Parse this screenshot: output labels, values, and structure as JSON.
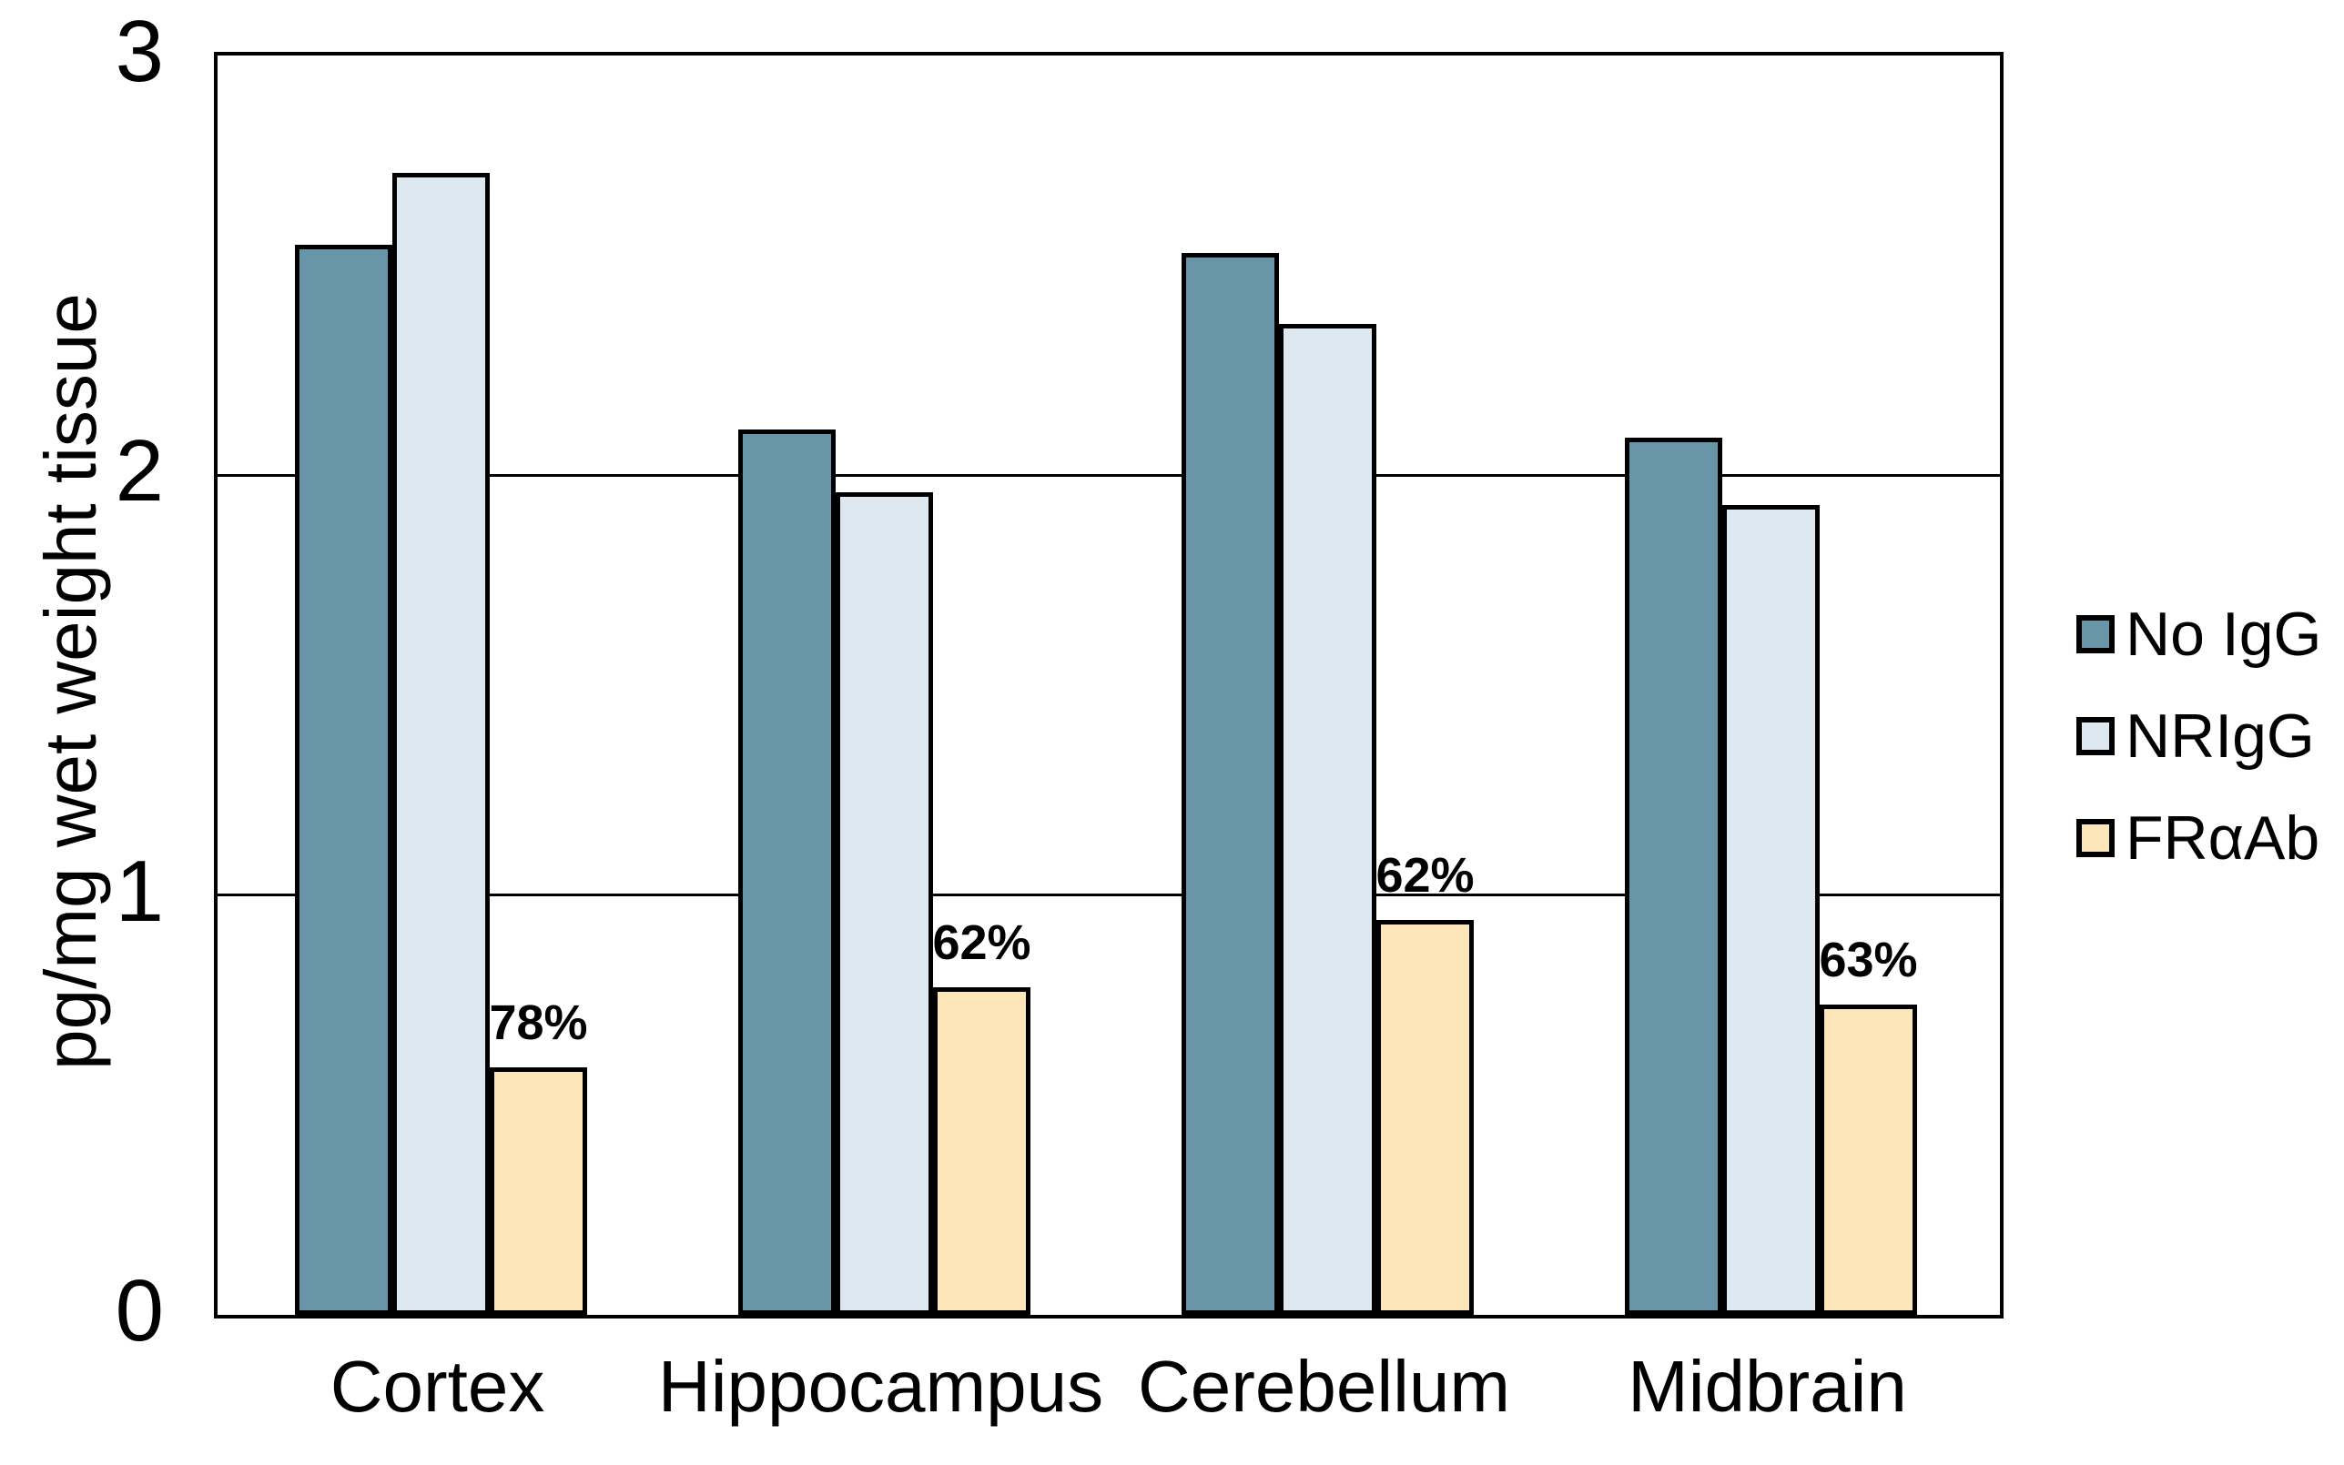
{
  "chart_data": {
    "type": "bar",
    "categories": [
      "Cortex",
      "Hippocampus",
      "Cerebellum",
      "Midbrain"
    ],
    "series": [
      {
        "name": "No IgG",
        "color": "#6995a9",
        "values": [
          2.55,
          2.11,
          2.53,
          2.09
        ]
      },
      {
        "name": "NRIgG",
        "color": "#dee8f1",
        "values": [
          2.72,
          1.96,
          2.36,
          1.93
        ]
      },
      {
        "name": "FRαAb",
        "color": "#fce5b8",
        "values": [
          0.59,
          0.78,
          0.94,
          0.74
        ]
      }
    ],
    "bar_annotations": {
      "series": "FRαAb",
      "labels": [
        "78%",
        "62%",
        "62%",
        "63%"
      ]
    },
    "ylabel": "pg/mg wet weight tissue",
    "yticks": [
      0,
      1,
      2,
      3
    ],
    "ylim": [
      0,
      3
    ],
    "grid": "horizontal",
    "legend_position": "right",
    "axis_color": "#000000",
    "bar_border_color": "#000000"
  }
}
